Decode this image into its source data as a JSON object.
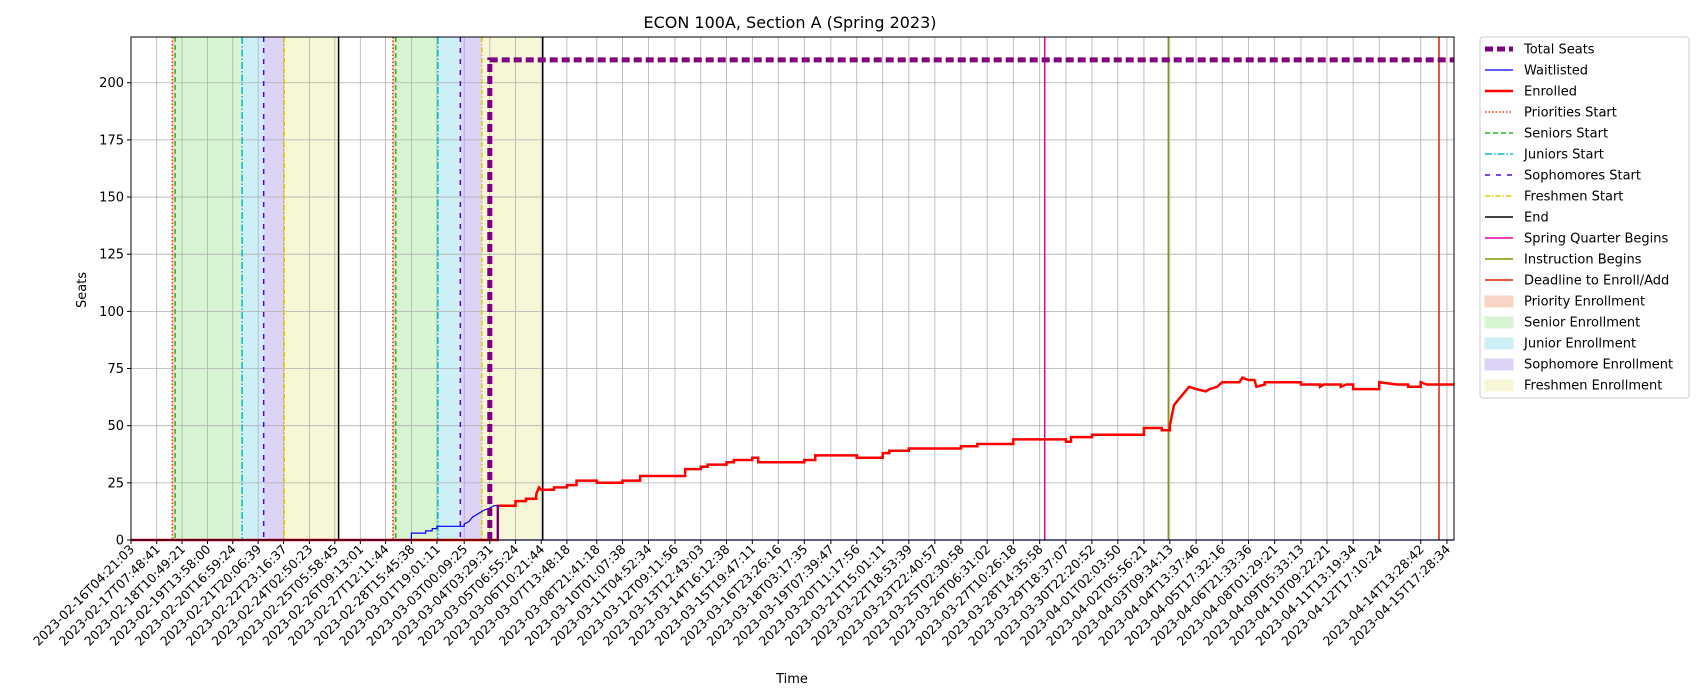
{
  "chart_data": {
    "type": "line",
    "title": "ECON 100A, Section A (Spring 2023)",
    "xlabel": "Time",
    "ylabel": "Seats",
    "xlim": [
      "2023-02-16T04:21:03",
      "2023-04-16T01:00:00"
    ],
    "ylim": [
      0,
      220
    ],
    "yticks": [
      0,
      25,
      50,
      75,
      100,
      125,
      150,
      175,
      200
    ],
    "grid": true,
    "legend_position": "outside-right",
    "x_tick_labels": [
      "2023-02-16T04:21:03",
      "2023-02-17T07:48:41",
      "2023-02-18T10:49:21",
      "2023-02-19T13:58:00",
      "2023-02-20T16:59:24",
      "2023-02-21T20:06:39",
      "2023-02-22T23:16:37",
      "2023-02-24T02:50:23",
      "2023-02-25T05:58:45",
      "2023-02-26T09:13:01",
      "2023-02-27T12:11:44",
      "2023-02-28T15:45:38",
      "2023-03-01T19:01:11",
      "2023-03-03T00:09:25",
      "2023-03-04T03:29:31",
      "2023-03-05T06:55:24",
      "2023-03-06T10:21:44",
      "2023-03-07T13:48:18",
      "2023-03-08T21:41:18",
      "2023-03-10T01:07:38",
      "2023-03-11T04:52:34",
      "2023-03-12T09:11:56",
      "2023-03-13T12:43:03",
      "2023-03-14T16:12:38",
      "2023-03-15T19:47:11",
      "2023-03-16T23:26:16",
      "2023-03-18T03:17:35",
      "2023-03-19T07:39:47",
      "2023-03-20T11:17:56",
      "2023-03-21T15:01:11",
      "2023-03-22T18:53:39",
      "2023-03-23T22:40:57",
      "2023-03-25T02:30:58",
      "2023-03-26T06:31:02",
      "2023-03-27T10:26:18",
      "2023-03-28T14:35:58",
      "2023-03-29T18:37:07",
      "2023-03-30T22:20:52",
      "2023-04-01T02:03:50",
      "2023-04-02T05:56:21",
      "2023-04-03T09:34:13",
      "2023-04-04T13:37:46",
      "2023-04-05T17:32:16",
      "2023-04-06T21:33:36",
      "2023-04-08T01:29:21",
      "2023-04-09T05:33:13",
      "2023-04-10T09:22:21",
      "2023-04-11T13:19:34",
      "2023-04-12T17:10:24",
      "2023-04-14T13:28:42",
      "2023-04-15T17:28:34"
    ],
    "series": [
      {
        "name": "Total Seats",
        "color": "#800080",
        "style": "dashed-thick",
        "points": [
          [
            "2023-03-04T03:29:31",
            0
          ],
          [
            "2023-03-04T03:29:31",
            210
          ],
          [
            "2023-04-16T01:00:00",
            210
          ]
        ]
      },
      {
        "name": "Waitlisted",
        "color": "#0000ff",
        "style": "solid-thin",
        "points": [
          [
            "2023-02-16T04:21:03",
            0
          ],
          [
            "2023-02-28T15:45:38",
            0
          ],
          [
            "2023-02-28T15:45:38",
            3
          ],
          [
            "2023-03-01T07:00:00",
            3
          ],
          [
            "2023-03-01T07:00:00",
            4
          ],
          [
            "2023-03-01T14:00:00",
            4
          ],
          [
            "2023-03-01T14:00:00",
            5
          ],
          [
            "2023-03-01T19:01:11",
            5
          ],
          [
            "2023-03-01T19:01:11",
            6
          ],
          [
            "2023-03-03T00:09:25",
            6
          ],
          [
            "2023-03-03T00:09:25",
            7
          ],
          [
            "2023-03-03T05:00:00",
            8
          ],
          [
            "2023-03-03T09:00:00",
            10
          ],
          [
            "2023-03-03T13:00:00",
            11
          ],
          [
            "2023-03-03T17:00:00",
            12
          ],
          [
            "2023-03-03T21:00:00",
            13
          ],
          [
            "2023-03-04T03:29:31",
            14
          ],
          [
            "2023-03-04T08:00:00",
            15
          ],
          [
            "2023-03-04T12:00:00",
            15
          ],
          [
            "2023-03-04T12:00:00",
            0
          ],
          [
            "2023-04-16T01:00:00",
            0
          ]
        ]
      },
      {
        "name": "Enrolled",
        "color": "#ff0000",
        "style": "solid-thick",
        "points": [
          [
            "2023-02-16T04:21:03",
            0
          ],
          [
            "2023-03-04T12:00:00",
            0
          ],
          [
            "2023-03-04T12:00:00",
            15
          ],
          [
            "2023-03-05T06:55:24",
            15
          ],
          [
            "2023-03-05T06:55:24",
            17
          ],
          [
            "2023-03-05T18:00:00",
            17
          ],
          [
            "2023-03-05T18:00:00",
            18
          ],
          [
            "2023-03-06T05:00:00",
            18
          ],
          [
            "2023-03-06T05:00:00",
            20
          ],
          [
            "2023-03-06T08:00:00",
            23
          ],
          [
            "2023-03-06T10:21:44",
            22
          ],
          [
            "2023-03-07T00:00:00",
            22
          ],
          [
            "2023-03-07T00:00:00",
            23
          ],
          [
            "2023-03-07T13:48:18",
            23
          ],
          [
            "2023-03-07T13:48:18",
            24
          ],
          [
            "2023-03-08T00:00:00",
            24
          ],
          [
            "2023-03-08T00:00:00",
            26
          ],
          [
            "2023-03-08T21:41:18",
            26
          ],
          [
            "2023-03-08T21:41:18",
            25
          ],
          [
            "2023-03-10T01:07:38",
            25
          ],
          [
            "2023-03-10T01:07:38",
            26
          ],
          [
            "2023-03-10T20:00:00",
            26
          ],
          [
            "2023-03-10T20:00:00",
            28
          ],
          [
            "2023-03-12T20:00:00",
            28
          ],
          [
            "2023-03-12T20:00:00",
            31
          ],
          [
            "2023-03-13T12:43:03",
            31
          ],
          [
            "2023-03-13T12:43:03",
            32
          ],
          [
            "2023-03-13T20:00:00",
            32
          ],
          [
            "2023-03-13T20:00:00",
            33
          ],
          [
            "2023-03-14T16:12:38",
            33
          ],
          [
            "2023-03-14T16:12:38",
            34
          ],
          [
            "2023-03-15T00:00:00",
            34
          ],
          [
            "2023-03-15T00:00:00",
            35
          ],
          [
            "2023-03-15T19:47:11",
            35
          ],
          [
            "2023-03-15T19:47:11",
            36
          ],
          [
            "2023-03-16T02:00:00",
            36
          ],
          [
            "2023-03-16T02:00:00",
            34
          ],
          [
            "2023-03-18T03:17:35",
            34
          ],
          [
            "2023-03-18T03:17:35",
            35
          ],
          [
            "2023-03-18T15:00:00",
            35
          ],
          [
            "2023-03-18T15:00:00",
            37
          ],
          [
            "2023-03-20T11:17:56",
            37
          ],
          [
            "2023-03-20T11:17:56",
            36
          ],
          [
            "2023-03-21T15:01:11",
            36
          ],
          [
            "2023-03-21T15:01:11",
            38
          ],
          [
            "2023-03-21T22:00:00",
            38
          ],
          [
            "2023-03-21T22:00:00",
            39
          ],
          [
            "2023-03-22T18:53:39",
            39
          ],
          [
            "2023-03-22T18:53:39",
            40
          ],
          [
            "2023-03-25T02:30:58",
            40
          ],
          [
            "2023-03-25T02:30:58",
            41
          ],
          [
            "2023-03-25T20:00:00",
            41
          ],
          [
            "2023-03-25T20:00:00",
            42
          ],
          [
            "2023-03-27T10:26:18",
            42
          ],
          [
            "2023-03-27T10:26:18",
            44
          ],
          [
            "2023-03-29T18:37:07",
            44
          ],
          [
            "2023-03-29T18:37:07",
            43
          ],
          [
            "2023-03-30T00:00:00",
            43
          ],
          [
            "2023-03-30T00:00:00",
            45
          ],
          [
            "2023-03-30T22:20:52",
            45
          ],
          [
            "2023-03-30T22:20:52",
            46
          ],
          [
            "2023-04-02T05:56:21",
            46
          ],
          [
            "2023-04-02T05:56:21",
            49
          ],
          [
            "2023-04-03T01:00:00",
            49
          ],
          [
            "2023-04-03T01:00:00",
            48
          ],
          [
            "2023-04-03T09:34:13",
            48
          ],
          [
            "2023-04-03T09:34:13",
            50
          ],
          [
            "2023-04-03T14:00:00",
            59
          ],
          [
            "2023-04-03T20:00:00",
            62
          ],
          [
            "2023-04-04T02:00:00",
            65
          ],
          [
            "2023-04-04T06:00:00",
            67
          ],
          [
            "2023-04-04T13:37:46",
            66
          ],
          [
            "2023-04-05T00:00:00",
            65
          ],
          [
            "2023-04-05T04:00:00",
            66
          ],
          [
            "2023-04-05T12:00:00",
            67
          ],
          [
            "2023-04-05T17:32:16",
            69
          ],
          [
            "2023-04-06T12:00:00",
            69
          ],
          [
            "2023-04-06T15:00:00",
            71
          ],
          [
            "2023-04-06T21:33:36",
            70
          ],
          [
            "2023-04-07T04:00:00",
            70
          ],
          [
            "2023-04-07T06:00:00",
            67
          ],
          [
            "2023-04-07T15:00:00",
            68
          ],
          [
            "2023-04-07T15:00:00",
            69
          ],
          [
            "2023-04-09T05:33:13",
            69
          ],
          [
            "2023-04-09T05:33:13",
            68
          ],
          [
            "2023-04-10T02:00:00",
            68
          ],
          [
            "2023-04-10T02:00:00",
            67
          ],
          [
            "2023-04-10T06:00:00",
            68
          ],
          [
            "2023-04-11T00:00:00",
            68
          ],
          [
            "2023-04-11T00:00:00",
            67
          ],
          [
            "2023-04-11T06:00:00",
            68
          ],
          [
            "2023-04-11T13:19:34",
            68
          ],
          [
            "2023-04-11T13:19:34",
            66
          ],
          [
            "2023-04-12T17:10:24",
            66
          ],
          [
            "2023-04-12T17:10:24",
            69
          ],
          [
            "2023-04-13T12:00:00",
            68
          ],
          [
            "2023-04-14T00:00:00",
            68
          ],
          [
            "2023-04-14T00:00:00",
            67
          ],
          [
            "2023-04-14T13:28:42",
            67
          ],
          [
            "2023-04-14T13:28:42",
            69
          ],
          [
            "2023-04-14T20:00:00",
            68
          ],
          [
            "2023-04-16T01:00:00",
            68
          ]
        ]
      }
    ],
    "phases": [
      {
        "type": "Priority Enrollment",
        "start": "2023-02-18T00:30:00",
        "end": "2023-02-18T03:30:00"
      },
      {
        "type": "Senior Enrollment",
        "start": "2023-02-18T03:30:00",
        "end": "2023-02-21T03:00:00"
      },
      {
        "type": "Junior Enrollment",
        "start": "2023-02-21T03:00:00",
        "end": "2023-02-22T02:00:00"
      },
      {
        "type": "Sophomore Enrollment",
        "start": "2023-02-22T02:00:00",
        "end": "2023-02-23T00:00:00"
      },
      {
        "type": "Freshmen Enrollment",
        "start": "2023-02-23T00:00:00",
        "end": "2023-02-25T10:00:00"
      },
      {
        "type": "Priority Enrollment",
        "start": "2023-02-27T20:00:00",
        "end": "2023-02-27T23:00:00"
      },
      {
        "type": "Senior Enrollment",
        "start": "2023-02-27T23:00:00",
        "end": "2023-03-01T20:00:00"
      },
      {
        "type": "Junior Enrollment",
        "start": "2023-03-01T20:00:00",
        "end": "2023-03-02T20:00:00"
      },
      {
        "type": "Sophomore Enrollment",
        "start": "2023-03-02T20:00:00",
        "end": "2023-03-03T19:00:00"
      },
      {
        "type": "Freshmen Enrollment",
        "start": "2023-03-03T19:00:00",
        "end": "2023-03-06T12:00:00"
      }
    ],
    "vlines": [
      {
        "type": "Priorities Start",
        "x": "2023-02-18T00:30:00"
      },
      {
        "type": "Seniors Start",
        "x": "2023-02-18T03:30:00"
      },
      {
        "type": "Juniors Start",
        "x": "2023-02-21T03:00:00"
      },
      {
        "type": "Sophomores Start",
        "x": "2023-02-22T02:00:00"
      },
      {
        "type": "Freshmen Start",
        "x": "2023-02-23T00:00:00"
      },
      {
        "type": "End",
        "x": "2023-02-25T10:00:00"
      },
      {
        "type": "Priorities Start",
        "x": "2023-02-27T20:00:00"
      },
      {
        "type": "Seniors Start",
        "x": "2023-02-27T23:00:00"
      },
      {
        "type": "Juniors Start",
        "x": "2023-03-01T20:00:00"
      },
      {
        "type": "Sophomores Start",
        "x": "2023-03-02T20:00:00"
      },
      {
        "type": "Freshmen Start",
        "x": "2023-03-03T19:00:00"
      },
      {
        "type": "End",
        "x": "2023-03-06T12:00:00"
      },
      {
        "type": "Spring Quarter Begins",
        "x": "2023-03-28T20:00:00"
      },
      {
        "type": "Instruction Begins",
        "x": "2023-04-03T08:00:00"
      },
      {
        "type": "Deadline to Enroll/Add",
        "x": "2023-04-15T09:00:00"
      }
    ],
    "legend": [
      {
        "label": "Total Seats",
        "kind": "line",
        "color": "#800080",
        "dash": "8,4",
        "width": 5
      },
      {
        "label": "Waitlisted",
        "kind": "line",
        "color": "#0000ff",
        "dash": "",
        "width": 1.2
      },
      {
        "label": "Enrolled",
        "kind": "line",
        "color": "#ff0000",
        "dash": "",
        "width": 2.5
      },
      {
        "label": "Priorities Start",
        "kind": "line",
        "color": "#ff2a00",
        "dash": "1.5,2",
        "width": 1.5
      },
      {
        "label": "Seniors Start",
        "kind": "line",
        "color": "#22bb22",
        "dash": "5,3",
        "width": 1.5
      },
      {
        "label": "Juniors Start",
        "kind": "line",
        "color": "#00bbcc",
        "dash": "7,2,1.5,2",
        "width": 1.5
      },
      {
        "label": "Sophomores Start",
        "kind": "line",
        "color": "#5500dd",
        "dash": "5,6",
        "width": 1.5
      },
      {
        "label": "Freshmen Start",
        "kind": "line",
        "color": "#ddcc00",
        "dash": "5,2,1.5,2",
        "width": 1.5
      },
      {
        "label": "End",
        "kind": "line",
        "color": "#000000",
        "dash": "",
        "width": 1.5
      },
      {
        "label": "Spring Quarter Begins",
        "kind": "line",
        "color": "#e0009b",
        "dash": "",
        "width": 1.5
      },
      {
        "label": "Instruction Begins",
        "kind": "line",
        "color": "#7a9a00",
        "dash": "",
        "width": 1.5
      },
      {
        "label": "Deadline to Enroll/Add",
        "kind": "line",
        "color": "#dd2200",
        "dash": "",
        "width": 1.5
      },
      {
        "label": "Priority Enrollment",
        "kind": "patch",
        "color": "#f7d4c6"
      },
      {
        "label": "Senior Enrollment",
        "kind": "patch",
        "color": "#d7f5d2"
      },
      {
        "label": "Junior Enrollment",
        "kind": "patch",
        "color": "#cdeff5"
      },
      {
        "label": "Sophomore Enrollment",
        "kind": "patch",
        "color": "#ddd3f7"
      },
      {
        "label": "Freshmen Enrollment",
        "kind": "patch",
        "color": "#f7f7d7"
      }
    ]
  }
}
